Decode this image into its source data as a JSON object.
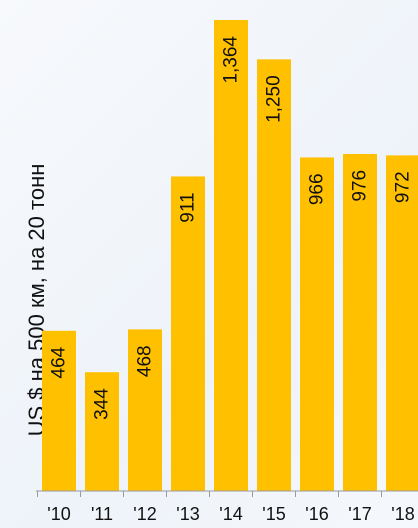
{
  "chart_data": {
    "type": "bar",
    "categories": [
      "'10",
      "'11",
      "'12",
      "'13",
      "'14",
      "'15",
      "'16",
      "'17",
      "'18"
    ],
    "values": [
      464,
      344,
      468,
      911,
      1364,
      1250,
      966,
      976,
      972
    ],
    "value_labels": [
      "464",
      "344",
      "468",
      "911",
      "1,364",
      "1,250",
      "966",
      "976",
      "972"
    ],
    "ylabel": "US $ на 500 км, на 20 тонн",
    "ylim": [
      0,
      1364
    ],
    "grid": false,
    "bar_color": "#FFC000"
  }
}
